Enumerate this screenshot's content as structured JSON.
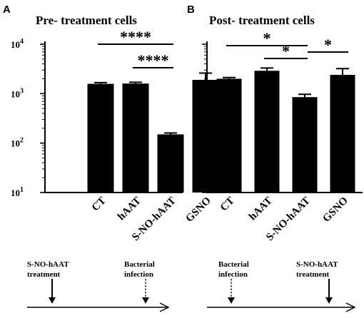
{
  "chart_data": [
    {
      "panel": "A",
      "type": "bar",
      "title": "Pre- treatment cells",
      "yscale": "log",
      "ylim": [
        10,
        10000
      ],
      "yticks": [
        {
          "value": 10,
          "base": "10",
          "exp": "1"
        },
        {
          "value": 100,
          "base": "10",
          "exp": "2"
        },
        {
          "value": 1000,
          "base": "10",
          "exp": "3"
        },
        {
          "value": 10000,
          "base": "10",
          "exp": "4"
        }
      ],
      "categories": [
        "CT",
        "hAAT",
        "S-NO-hAAT",
        "GSNO"
      ],
      "values": [
        1580,
        1600,
        150,
        1900
      ],
      "errors": [
        90,
        100,
        10,
        700
      ],
      "significance": [
        {
          "from": 0,
          "to": 2,
          "label": "****"
        },
        {
          "from": 1,
          "to": 2,
          "label": "****"
        }
      ]
    },
    {
      "panel": "B",
      "type": "bar",
      "title": "Post- treatment cells",
      "yscale": "log",
      "ylim": [
        10,
        10000
      ],
      "yticks": [
        {
          "value": 10,
          "base": "",
          "exp": ""
        },
        {
          "value": 100,
          "base": "",
          "exp": ""
        },
        {
          "value": 1000,
          "base": "",
          "exp": ""
        },
        {
          "value": 10000,
          "base": "",
          "exp": ""
        }
      ],
      "categories": [
        "CT",
        "hAAT",
        "S-NO-hAAT",
        "GSNO"
      ],
      "values": [
        2000,
        2900,
        850,
        2400
      ],
      "errors": [
        120,
        400,
        120,
        800
      ],
      "significance": [
        {
          "from": 0,
          "to": 2,
          "label": "*"
        },
        {
          "from": 1,
          "to": 2,
          "label": "*"
        },
        {
          "from": 2,
          "to": 3,
          "label": "*"
        }
      ]
    }
  ],
  "timelines": [
    {
      "panel": "A",
      "events": [
        {
          "lines": [
            "S-NO-hAAT",
            "treatment"
          ],
          "arrow": "solid"
        },
        {
          "lines": [
            "Bacterial",
            "infection"
          ],
          "arrow": "dashed"
        }
      ]
    },
    {
      "panel": "B",
      "events": [
        {
          "lines": [
            "Bacterial",
            "infection"
          ],
          "arrow": "dashed"
        },
        {
          "lines": [
            "S-NO-hAAT",
            "treatment"
          ],
          "arrow": "solid"
        }
      ]
    }
  ]
}
